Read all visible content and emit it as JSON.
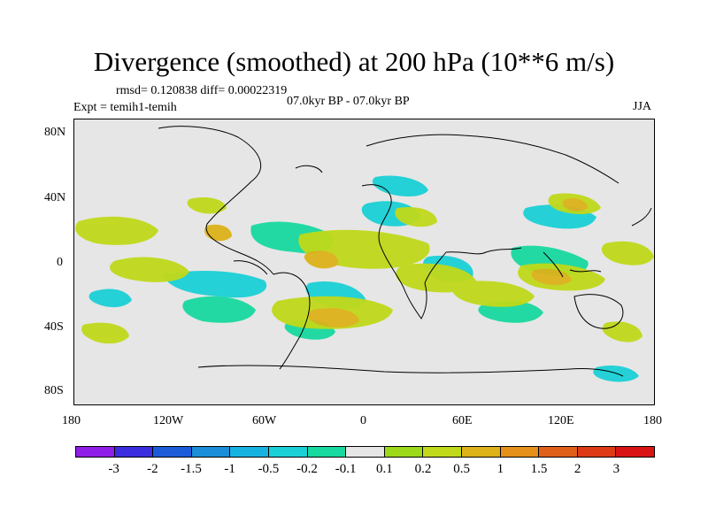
{
  "title": "Divergence (smoothed) at 200 hPa (10**6 m/s)",
  "stats": "rmsd= 0.120838 diff= 0.00022319",
  "experiment": "Expt = temih1-temih",
  "period": "07.0kyr BP - 07.0kyr BP",
  "season": "JJA",
  "lat_ticks": [
    "80N",
    "40N",
    "0",
    "40S",
    "80S"
  ],
  "lon_ticks": [
    "180",
    "120W",
    "60W",
    "0",
    "60E",
    "120E",
    "180"
  ],
  "colorbar": {
    "labels": [
      "-3",
      "-2",
      "-1.5",
      "-1",
      "-0.5",
      "-0.2",
      "-0.1",
      "0.1",
      "0.2",
      "0.5",
      "1",
      "1.5",
      "2",
      "3"
    ],
    "colors": [
      "#8f1ee6",
      "#3a2ee0",
      "#1d5bd9",
      "#1a8ed8",
      "#17b3e0",
      "#1ad0d6",
      "#18d9a0",
      "#e6e6e6",
      "#9bd91a",
      "#c0d91a",
      "#ddb21a",
      "#e4901a",
      "#e0601a",
      "#dd3a16",
      "#d81414"
    ]
  },
  "legend_colors": {
    "positive_weak": "#9bd91a",
    "positive_mid": "#c0d91a",
    "positive_strong": "#ddb21a",
    "negative_weak": "#18d9a0",
    "negative_mid": "#1ad0d6",
    "coastline": "#000000",
    "background": "#e6e6e6"
  }
}
